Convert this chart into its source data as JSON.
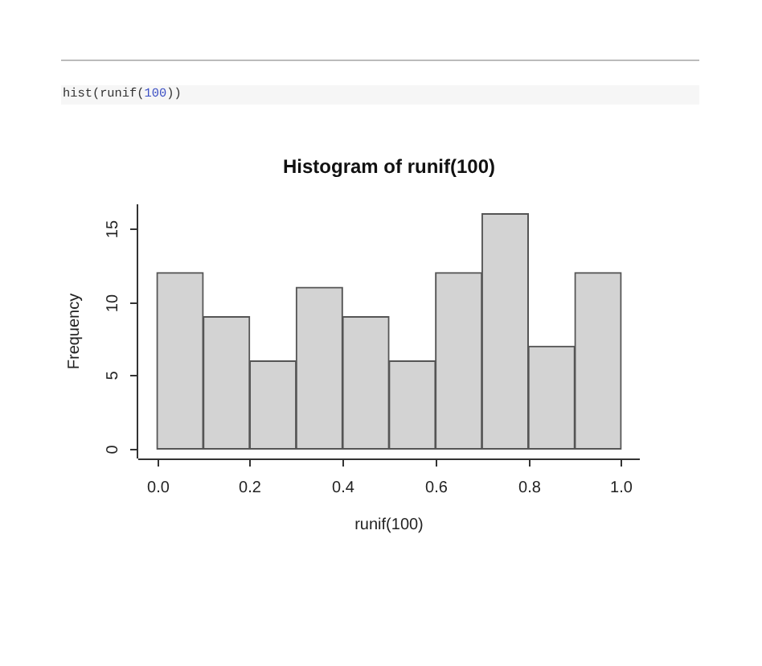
{
  "chart_data": {
    "type": "histogram",
    "title": "Histogram of runif(100)",
    "xlabel": "runif(100)",
    "ylabel": "Frequency",
    "annotations": [
      "hist(runif(100))"
    ],
    "bins": [
      0,
      0.1,
      0.2,
      0.3,
      0.4,
      0.5,
      0.6,
      0.7,
      0.8,
      0.9,
      1
    ],
    "values": [
      12,
      9,
      6,
      11,
      9,
      6,
      12,
      16,
      7,
      12
    ],
    "color": "#d3d3d3",
    "xlim": [
      -0.04,
      1.04
    ],
    "ylim": [
      -0.64,
      16.64
    ],
    "xticks": [
      {
        "value": 0,
        "label": "0.0"
      },
      {
        "value": 0.2,
        "label": "0.2"
      },
      {
        "value": 0.4,
        "label": "0.4"
      },
      {
        "value": 0.6,
        "label": "0.6"
      },
      {
        "value": 0.8,
        "label": "0.8"
      },
      {
        "value": 1,
        "label": "1.0"
      }
    ],
    "yticks": [
      0,
      5,
      10,
      15
    ]
  }
}
